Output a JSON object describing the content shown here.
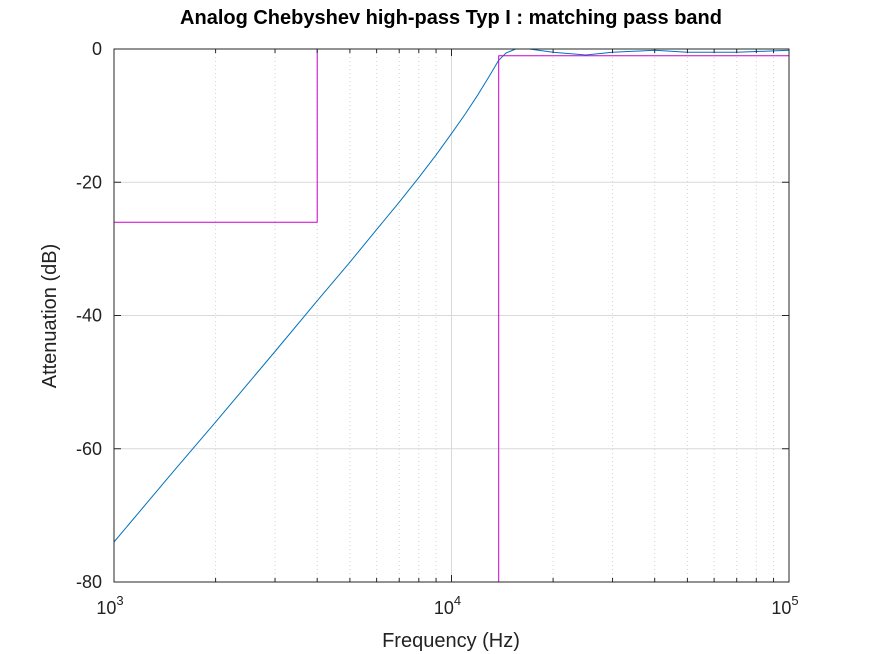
{
  "chart_data": {
    "type": "line",
    "title": "Analog Chebyshev high-pass Typ I : matching pass band",
    "xlabel": "Frequency (Hz)",
    "ylabel": "Attenuation (dB)",
    "xscale": "log",
    "xlim": [
      1000,
      100000
    ],
    "ylim": [
      -80,
      0
    ],
    "grid": true,
    "x_ticks": [
      {
        "base": "10",
        "exp": "3",
        "value": 1000
      },
      {
        "base": "10",
        "exp": "4",
        "value": 10000
      },
      {
        "base": "10",
        "exp": "5",
        "value": 100000
      }
    ],
    "y_ticks": [
      "0",
      "-20",
      "-40",
      "-60",
      "-80"
    ],
    "y_tick_values": [
      0,
      -20,
      -40,
      -60,
      -80
    ],
    "series": [
      {
        "color": "#0072bd",
        "x": [
          1000,
          1500,
          2000,
          3000,
          4000,
          5000,
          6000,
          7000,
          8000,
          9000,
          10000,
          11000,
          12000,
          13000,
          13800,
          14500,
          15500,
          17000,
          20000,
          25000,
          30000,
          40000,
          50000,
          70000,
          100000
        ],
        "y": [
          -74,
          -63.4,
          -56.0,
          -45.4,
          -37.8,
          -32.0,
          -27.1,
          -23.0,
          -19.3,
          -15.9,
          -12.7,
          -9.7,
          -6.8,
          -3.9,
          -1.7,
          -0.6,
          0,
          0,
          -0.5,
          -0.9,
          -0.5,
          -0.2,
          -0.5,
          -0.5,
          -0.2
        ]
      },
      {
        "color": "#cc00cc",
        "x": [
          1000,
          4000,
          4000,
          100000
        ],
        "y": [
          -26,
          -26,
          0,
          0
        ]
      },
      {
        "color": "#cc00cc",
        "x": [
          13800,
          13800,
          100000
        ],
        "y": [
          -80,
          -1,
          -1
        ]
      }
    ]
  }
}
